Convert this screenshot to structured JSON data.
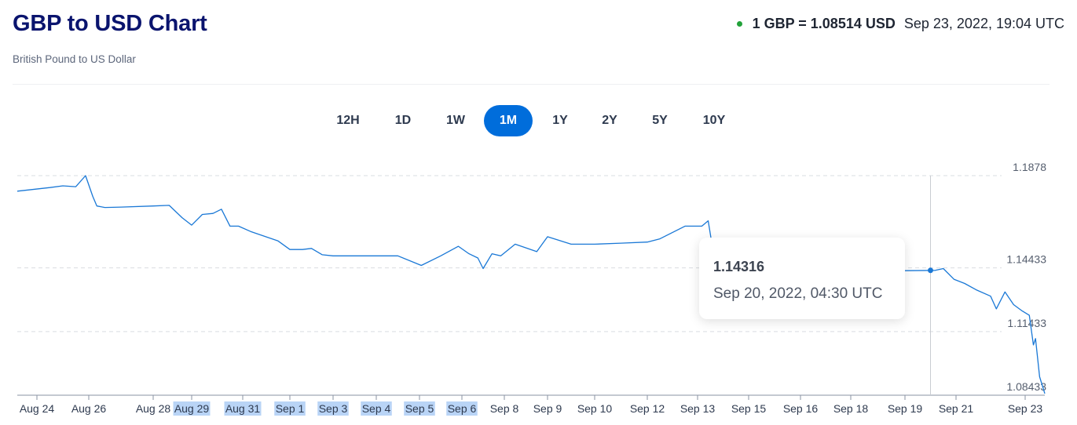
{
  "header": {
    "title": "GBP to USD Chart",
    "subtitle": "British Pound to US Dollar",
    "rate_text": "1 GBP = 1.08514 USD",
    "rate_date": "Sep 23, 2022, 19:04 UTC",
    "live_dot_color": "#22a23a"
  },
  "tabs": [
    {
      "label": "12H",
      "active": false
    },
    {
      "label": "1D",
      "active": false
    },
    {
      "label": "1W",
      "active": false
    },
    {
      "label": "1M",
      "active": true
    },
    {
      "label": "1Y",
      "active": false
    },
    {
      "label": "2Y",
      "active": false
    },
    {
      "label": "5Y",
      "active": false
    },
    {
      "label": "10Y",
      "active": false
    }
  ],
  "tooltip": {
    "value": "1.14316",
    "date": "Sep 20, 2022, 04:30 UTC"
  },
  "chart_data": {
    "type": "line",
    "line_color": "#1a78d6",
    "x_type": "date",
    "x_labels": [
      "Aug 24",
      "Aug 26",
      "Aug 28",
      "Aug 29",
      "Aug 31",
      "Sep 1",
      "Sep 3",
      "Sep 4",
      "Sep 5",
      "Sep 6",
      "Sep 8",
      "Sep 9",
      "Sep 10",
      "Sep 12",
      "Sep 13",
      "Sep 15",
      "Sep 16",
      "Sep 18",
      "Sep 19",
      "Sep 21",
      "Sep 23"
    ],
    "highlighted_x_labels": [
      "Aug 29",
      "Aug 31",
      "Sep 1",
      "Sep 3",
      "Sep 4",
      "Sep 5",
      "Sep 6"
    ],
    "y_ticks": [
      1.08433,
      1.11433,
      1.14433,
      1.1878
    ],
    "grid": "horizontal dashed",
    "hover_x": "Sep 20, 2022, 04:30",
    "points": [
      [
        "Aug 24",
        1.1805
      ],
      [
        "Aug 24 12:00",
        1.1822
      ],
      [
        "Aug 25",
        1.183
      ],
      [
        "Aug 25 12:00",
        1.1826
      ],
      [
        "Aug 25 21:00",
        1.1878
      ],
      [
        "Aug 26 03:00",
        1.178
      ],
      [
        "Aug 26 06:00",
        1.1735
      ],
      [
        "Aug 26 12:00",
        1.1728
      ],
      [
        "Aug 27",
        1.173
      ],
      [
        "Aug 28",
        1.1735
      ],
      [
        "Aug 28 10:00",
        1.1738
      ],
      [
        "Aug 28 18:00",
        1.168
      ],
      [
        "Aug 29",
        1.1645
      ],
      [
        "Aug 29 10:00",
        1.1695
      ],
      [
        "Aug 29 20:00",
        1.17
      ],
      [
        "Aug 30 04:00",
        1.172
      ],
      [
        "Aug 30 12:00",
        1.164
      ],
      [
        "Aug 30 20:00",
        1.164
      ],
      [
        "Aug 31 04:00",
        1.1615
      ],
      [
        "Aug 31 18:00",
        1.157
      ],
      [
        "Sep 1",
        1.153
      ],
      [
        "Sep 1 14:00",
        1.153
      ],
      [
        "Sep 2",
        1.1535
      ],
      [
        "Sep 2 12:00",
        1.1505
      ],
      [
        "Sep 3",
        1.15
      ],
      [
        "Sep 4",
        1.15
      ],
      [
        "Sep 4 12:00",
        1.15
      ],
      [
        "Sep 5 01:00",
        1.1455
      ],
      [
        "Sep 5 12:00",
        1.15
      ],
      [
        "Sep 5 22:00",
        1.1545
      ],
      [
        "Sep 6 08:00",
        1.151
      ],
      [
        "Sep 6 18:00",
        1.149
      ],
      [
        "Sep 7",
        1.144
      ],
      [
        "Sep 7 10:00",
        1.151
      ],
      [
        "Sep 7 20:00",
        1.15
      ],
      [
        "Sep 8 06:00",
        1.1555
      ],
      [
        "Sep 8 18:00",
        1.152
      ],
      [
        "Sep 9",
        1.159
      ],
      [
        "Sep 9 12:00",
        1.1555
      ],
      [
        "Sep 10",
        1.1555
      ],
      [
        "Sep 11",
        1.156
      ],
      [
        "Sep 12",
        1.1565
      ],
      [
        "Sep 12 06:00",
        1.158
      ],
      [
        "Sep 12 18:00",
        1.164
      ],
      [
        "Sep 13 04:00",
        1.164
      ],
      [
        "Sep 13 10:00",
        1.1665
      ],
      [
        "Sep 13 14:00",
        1.154
      ],
      [
        "Sep 13 20:00",
        1.153
      ],
      [
        "Sep 19",
        1.143
      ],
      [
        "Sep 20 04:30",
        1.14316
      ],
      [
        "Sep 20 12:00",
        1.144
      ],
      [
        "Sep 20 22:00",
        1.139
      ],
      [
        "Sep 21 06:00",
        1.137
      ],
      [
        "Sep 21 14:00",
        1.134
      ],
      [
        "Sep 22",
        1.131
      ],
      [
        "Sep 22 04:00",
        1.125
      ],
      [
        "Sep 22 10:00",
        1.133
      ],
      [
        "Sep 22 16:00",
        1.127
      ],
      [
        "Sep 22 22:00",
        1.124
      ],
      [
        "Sep 23 04:00",
        1.122
      ],
      [
        "Sep 23 08:00",
        1.108
      ],
      [
        "Sep 23 10:00",
        1.111
      ],
      [
        "Sep 23 14:00",
        1.093
      ],
      [
        "Sep 23 19:00",
        1.0851
      ]
    ]
  }
}
